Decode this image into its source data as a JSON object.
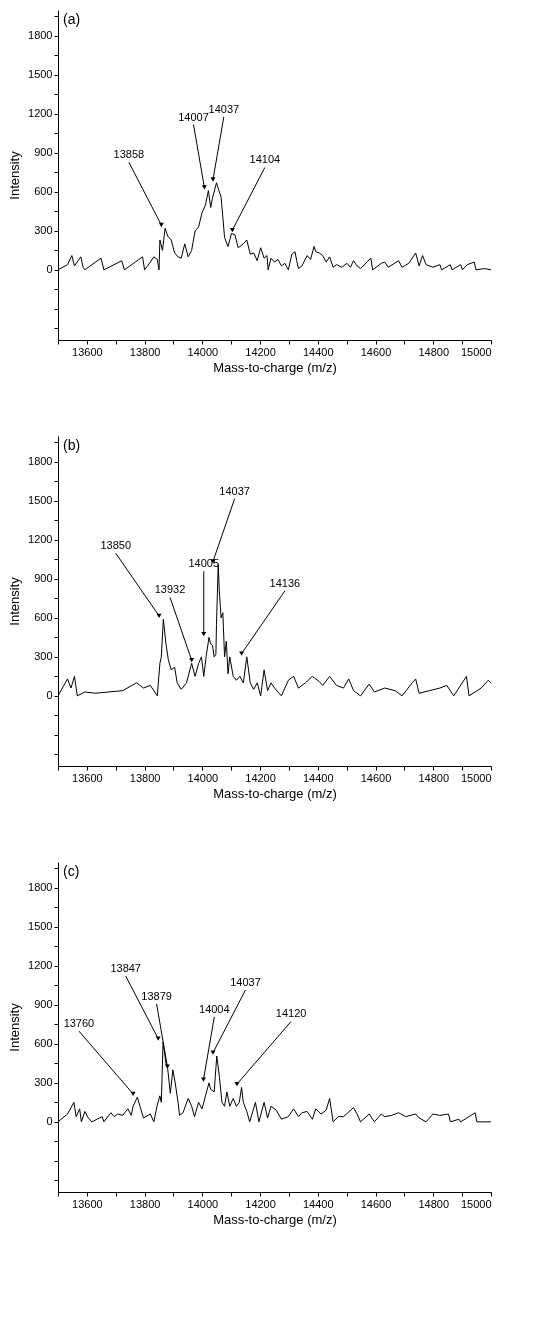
{
  "chart_data": [
    {
      "type": "line",
      "title": "(a)",
      "xlabel": "Mass-to-charge (m/z)",
      "ylabel": "Intensity",
      "color": "#000000",
      "line_style": "solid",
      "marker": "none",
      "grid": false,
      "x": [
        13500,
        13533,
        13548,
        13557,
        13579,
        13587,
        13593,
        13649,
        13659,
        13721,
        13730,
        13793,
        13800,
        13820,
        13832,
        13844,
        13850,
        13853,
        13862,
        13871,
        13880,
        13892,
        13904,
        13916,
        13927,
        13939,
        13951,
        13963,
        13975,
        13987,
        13999,
        14011,
        14021,
        14029,
        14035,
        14049,
        14056,
        14065,
        14077,
        14089,
        14101,
        14113,
        14124,
        14142,
        14154,
        14166,
        14178,
        14190,
        14202,
        14214,
        14224,
        14228,
        14238,
        14250,
        14262,
        14274,
        14286,
        14298,
        14310,
        14321,
        14327,
        14333,
        14345,
        14363,
        14375,
        14387,
        14393,
        14405,
        14417,
        14429,
        14441,
        14453,
        14465,
        14483,
        14501,
        14513,
        14524,
        14536,
        14548,
        14584,
        14590,
        14620,
        14632,
        14644,
        14680,
        14692,
        14715,
        14739,
        14751,
        14763,
        14775,
        14799,
        14823,
        14829,
        14859,
        14865,
        14895,
        14901,
        14918,
        14942,
        14948,
        14978,
        15000
      ],
      "values": [
        0,
        40,
        110,
        30,
        100,
        20,
        0,
        90,
        0,
        70,
        0,
        100,
        0,
        60,
        100,
        80,
        0,
        230,
        150,
        320,
        260,
        230,
        130,
        100,
        90,
        200,
        100,
        150,
        300,
        330,
        440,
        500,
        610,
        480,
        550,
        670,
        620,
        560,
        250,
        180,
        280,
        270,
        170,
        200,
        230,
        120,
        130,
        70,
        170,
        90,
        110,
        0,
        90,
        60,
        80,
        30,
        50,
        0,
        120,
        140,
        70,
        10,
        30,
        110,
        80,
        180,
        140,
        130,
        110,
        60,
        100,
        20,
        40,
        20,
        50,
        20,
        70,
        30,
        10,
        90,
        0,
        50,
        60,
        20,
        70,
        20,
        50,
        130,
        30,
        110,
        40,
        20,
        40,
        0,
        40,
        0,
        40,
        0,
        40,
        60,
        0,
        10,
        0
      ],
      "annotations": [
        {
          "text": "13858",
          "x": 13858,
          "y": 320
        },
        {
          "text": "14007",
          "x": 14007,
          "y": 610
        },
        {
          "text": "14037",
          "x": 14037,
          "y": 670
        },
        {
          "text": "14104",
          "x": 14104,
          "y": 280
        }
      ],
      "xlim": [
        13500,
        15000
      ],
      "ylim": [
        -540,
        2000
      ],
      "xticks": [
        {
          "value": 13500,
          "label": null
        },
        13600,
        {
          "value": 13700,
          "label": null
        },
        13800,
        {
          "value": 13900,
          "label": null
        },
        14000,
        {
          "value": 14100,
          "label": null
        },
        14200,
        {
          "value": 14300,
          "label": null
        },
        14400,
        {
          "value": 14500,
          "label": null
        },
        14600,
        {
          "value": 14700,
          "label": null
        },
        14800,
        {
          "value": 14900,
          "label": null
        },
        15000
      ],
      "yticks": [
        {
          "value": -450,
          "label": null
        },
        {
          "value": -300,
          "label": null
        },
        {
          "value": -150,
          "label": null
        },
        0,
        {
          "value": 150,
          "label": null
        },
        300,
        {
          "value": 450,
          "label": null
        },
        600,
        {
          "value": 750,
          "label": null
        },
        900,
        {
          "value": 1050,
          "label": null
        },
        1200,
        {
          "value": 1350,
          "label": null
        },
        1500,
        {
          "value": 1650,
          "label": null
        },
        1800,
        {
          "value": 1950,
          "label": null
        }
      ]
    },
    {
      "type": "line",
      "title": "(b)",
      "xlabel": "Mass-to-charge (m/z)",
      "ylabel": "Intensity",
      "color": "#000000",
      "line_style": "solid",
      "marker": "none",
      "grid": false,
      "x": [
        13500,
        13533,
        13545,
        13557,
        13567,
        13593,
        13629,
        13677,
        13724,
        13772,
        13784,
        13796,
        13820,
        13844,
        13853,
        13858,
        13865,
        13874,
        13882,
        13892,
        13904,
        13913,
        13927,
        13945,
        13963,
        13975,
        13987,
        13997,
        14005,
        14013,
        14023,
        14029,
        14035,
        14041,
        14047,
        14049,
        14055,
        14059,
        14065,
        14071,
        14077,
        14083,
        14089,
        14095,
        14107,
        14118,
        14130,
        14142,
        14154,
        14166,
        14178,
        14190,
        14202,
        14214,
        14226,
        14238,
        14250,
        14274,
        14298,
        14316,
        14333,
        14357,
        14381,
        14393,
        14405,
        14417,
        14441,
        14465,
        14489,
        14507,
        14524,
        14548,
        14578,
        14596,
        14632,
        14668,
        14692,
        14727,
        14739,
        14751,
        14787,
        14823,
        14847,
        14871,
        14915,
        14924,
        14966,
        14990,
        15000
      ],
      "values": [
        0,
        130,
        60,
        150,
        0,
        30,
        20,
        30,
        40,
        100,
        80,
        60,
        80,
        0,
        250,
        300,
        590,
        400,
        280,
        200,
        220,
        100,
        50,
        100,
        250,
        150,
        250,
        300,
        150,
        300,
        450,
        400,
        390,
        300,
        320,
        550,
        1010,
        800,
        600,
        640,
        300,
        420,
        170,
        300,
        150,
        120,
        150,
        100,
        300,
        100,
        50,
        100,
        0,
        200,
        40,
        100,
        60,
        0,
        120,
        150,
        60,
        100,
        150,
        130,
        110,
        80,
        150,
        80,
        60,
        130,
        40,
        0,
        90,
        30,
        60,
        40,
        0,
        100,
        130,
        20,
        40,
        60,
        80,
        0,
        150,
        0,
        60,
        120,
        100
      ],
      "annotations": [
        {
          "text": "13850",
          "x": 13850,
          "y": 590
        },
        {
          "text": "13932",
          "x": 13963,
          "y": 250
        },
        {
          "text": "14005",
          "x": 14005,
          "y": 450
        },
        {
          "text": "14037",
          "x": 14037,
          "y": 1010
        },
        {
          "text": "14136",
          "x": 14136,
          "y": 300
        }
      ],
      "xlim": [
        13500,
        15000
      ],
      "ylim": [
        -540,
        2000
      ],
      "xticks": [
        {
          "value": 13500,
          "label": null
        },
        13600,
        {
          "value": 13700,
          "label": null
        },
        13800,
        {
          "value": 13900,
          "label": null
        },
        14000,
        {
          "value": 14100,
          "label": null
        },
        14200,
        {
          "value": 14300,
          "label": null
        },
        14400,
        {
          "value": 14500,
          "label": null
        },
        14600,
        {
          "value": 14700,
          "label": null
        },
        14800,
        {
          "value": 14900,
          "label": null
        },
        15000
      ],
      "yticks": [
        {
          "value": -450,
          "label": null
        },
        {
          "value": -300,
          "label": null
        },
        {
          "value": -150,
          "label": null
        },
        0,
        {
          "value": 150,
          "label": null
        },
        300,
        {
          "value": 450,
          "label": null
        },
        600,
        {
          "value": 750,
          "label": null
        },
        900,
        {
          "value": 1050,
          "label": null
        },
        1200,
        {
          "value": 1350,
          "label": null
        },
        1500,
        {
          "value": 1650,
          "label": null
        },
        1800,
        {
          "value": 1950,
          "label": null
        }
      ]
    },
    {
      "type": "line",
      "title": "(c)",
      "xlabel": "Mass-to-charge (m/z)",
      "ylabel": "Intensity",
      "color": "#000000",
      "line_style": "solid",
      "marker": "none",
      "grid": false,
      "x": [
        13500,
        13533,
        13555,
        13563,
        13575,
        13581,
        13593,
        13605,
        13617,
        13653,
        13659,
        13683,
        13695,
        13707,
        13724,
        13742,
        13754,
        13760,
        13775,
        13784,
        13796,
        13820,
        13832,
        13844,
        13853,
        13858,
        13864,
        13874,
        13880,
        13889,
        13898,
        13906,
        13916,
        13921,
        13933,
        13951,
        13963,
        13973,
        13987,
        13999,
        14011,
        14023,
        14029,
        14041,
        14050,
        14059,
        14068,
        14077,
        14085,
        14095,
        14107,
        14118,
        14128,
        14136,
        14142,
        14154,
        14164,
        14184,
        14196,
        14214,
        14226,
        14238,
        14256,
        14274,
        14298,
        14316,
        14333,
        14345,
        14363,
        14381,
        14393,
        14411,
        14429,
        14441,
        14453,
        14471,
        14489,
        14524,
        14536,
        14548,
        14578,
        14596,
        14620,
        14632,
        14656,
        14680,
        14704,
        14739,
        14751,
        14775,
        14799,
        14823,
        14853,
        14859,
        14889,
        14895,
        14945,
        14951,
        15000
      ],
      "values": [
        0,
        60,
        150,
        40,
        100,
        0,
        80,
        30,
        0,
        40,
        0,
        70,
        40,
        60,
        50,
        100,
        50,
        120,
        190,
        120,
        30,
        60,
        0,
        130,
        200,
        150,
        615,
        450,
        410,
        220,
        400,
        300,
        150,
        50,
        70,
        180,
        120,
        40,
        150,
        100,
        200,
        300,
        250,
        230,
        507,
        350,
        150,
        120,
        230,
        120,
        180,
        120,
        150,
        265,
        150,
        80,
        0,
        150,
        0,
        150,
        30,
        120,
        90,
        20,
        40,
        100,
        40,
        70,
        80,
        20,
        100,
        60,
        90,
        180,
        0,
        40,
        40,
        110,
        60,
        0,
        60,
        0,
        60,
        40,
        50,
        70,
        40,
        60,
        30,
        0,
        60,
        50,
        60,
        0,
        20,
        0,
        70,
        0,
        0
      ],
      "annotations": [
        {
          "text": "13760",
          "x": 13760,
          "y": 190
        },
        {
          "text": "13847",
          "x": 13847,
          "y": 615
        },
        {
          "text": "13879",
          "x": 13879,
          "y": 400
        },
        {
          "text": "14004",
          "x": 14004,
          "y": 300
        },
        {
          "text": "14037",
          "x": 14037,
          "y": 507
        },
        {
          "text": "14120",
          "x": 14120,
          "y": 265
        }
      ],
      "xlim": [
        13500,
        15000
      ],
      "ylim": [
        -540,
        2000
      ],
      "xticks": [
        {
          "value": 13500,
          "label": null
        },
        13600,
        {
          "value": 13700,
          "label": null
        },
        13800,
        {
          "value": 13900,
          "label": null
        },
        14000,
        {
          "value": 14100,
          "label": null
        },
        14200,
        {
          "value": 14300,
          "label": null
        },
        14400,
        {
          "value": 14500,
          "label": null
        },
        14600,
        {
          "value": 14700,
          "label": null
        },
        14800,
        {
          "value": 14900,
          "label": null
        },
        15000
      ],
      "yticks": [
        {
          "value": -450,
          "label": null
        },
        {
          "value": -300,
          "label": null
        },
        {
          "value": -150,
          "label": null
        },
        0,
        {
          "value": 150,
          "label": null
        },
        300,
        {
          "value": 450,
          "label": null
        },
        600,
        {
          "value": 750,
          "label": null
        },
        900,
        {
          "value": 1050,
          "label": null
        },
        1200,
        {
          "value": 1350,
          "label": null
        },
        1500,
        {
          "value": 1650,
          "label": null
        },
        1800,
        {
          "value": 1950,
          "label": null
        }
      ]
    }
  ]
}
